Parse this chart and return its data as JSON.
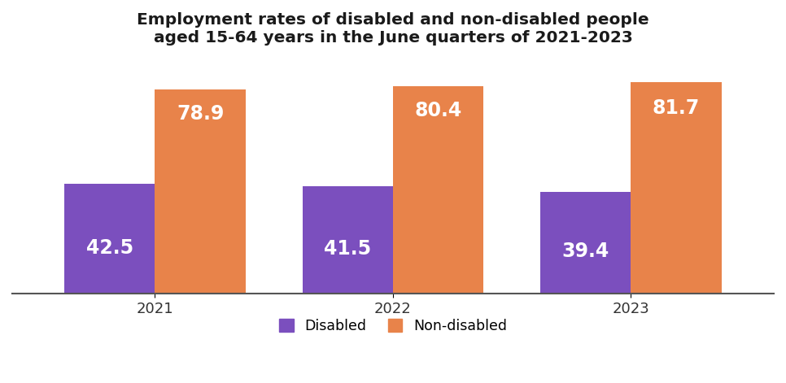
{
  "title": "Employment rates of disabled and non-disabled people\naged 15-64 years in the June quarters of 2021-2023",
  "years": [
    "2021",
    "2022",
    "2023"
  ],
  "disabled": [
    42.5,
    41.5,
    39.4
  ],
  "non_disabled": [
    78.9,
    80.4,
    81.7
  ],
  "disabled_color": "#7B4FBE",
  "non_disabled_color": "#E8834A",
  "label_color": "#FFFFFF",
  "bar_width": 0.38,
  "ylim": [
    0,
    92
  ],
  "background_color": "#FFFFFF",
  "grid_color": "#CCCCCC",
  "title_fontsize": 14.5,
  "tick_fontsize": 13,
  "legend_fontsize": 12.5,
  "value_fontsize": 17,
  "legend_disabled": "Disabled",
  "legend_non_disabled": "Non-disabled"
}
